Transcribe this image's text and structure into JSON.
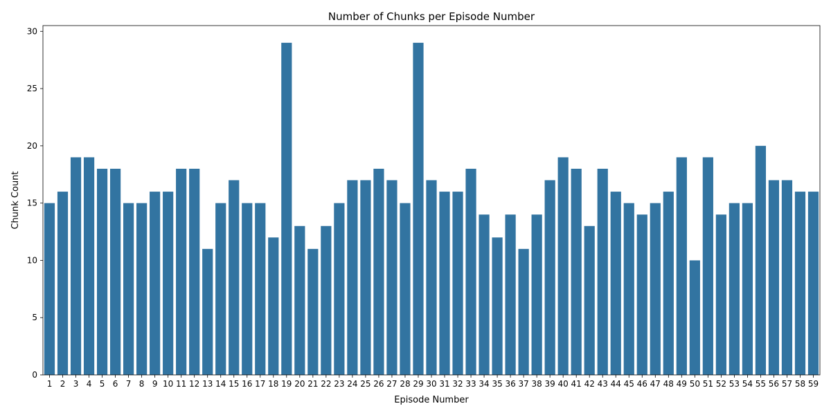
{
  "chart_data": {
    "type": "bar",
    "title": "Number of Chunks per Episode Number",
    "xlabel": "Episode Number",
    "ylabel": "Chunk Count",
    "ylim": [
      0,
      30.5
    ],
    "yticks": [
      0,
      5,
      10,
      15,
      20,
      25,
      30
    ],
    "grid": false,
    "bar_color": "#3274a1",
    "categories": [
      "1",
      "2",
      "3",
      "4",
      "5",
      "6",
      "7",
      "8",
      "9",
      "10",
      "11",
      "12",
      "13",
      "14",
      "15",
      "16",
      "17",
      "18",
      "19",
      "20",
      "21",
      "22",
      "23",
      "24",
      "25",
      "26",
      "27",
      "28",
      "29",
      "30",
      "31",
      "32",
      "33",
      "34",
      "35",
      "36",
      "37",
      "38",
      "39",
      "40",
      "41",
      "42",
      "43",
      "44",
      "45",
      "46",
      "47",
      "48",
      "49",
      "50",
      "51",
      "52",
      "53",
      "54",
      "55",
      "56",
      "57",
      "58",
      "59"
    ],
    "values": [
      15,
      16,
      19,
      19,
      18,
      18,
      15,
      15,
      16,
      16,
      18,
      18,
      11,
      15,
      17,
      15,
      15,
      12,
      29,
      13,
      11,
      13,
      15,
      17,
      17,
      18,
      17,
      15,
      29,
      17,
      16,
      16,
      18,
      14,
      12,
      14,
      11,
      14,
      17,
      19,
      18,
      13,
      18,
      16,
      15,
      14,
      15,
      16,
      19,
      10,
      19,
      14,
      15,
      15,
      20,
      17,
      17,
      16,
      16
    ]
  }
}
